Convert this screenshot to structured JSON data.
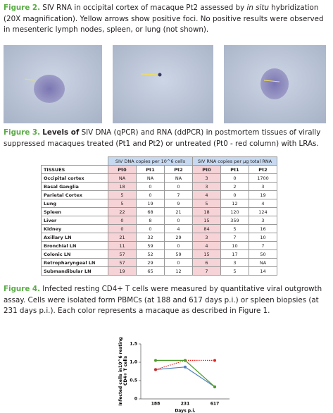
{
  "figure2": {
    "label": "Figure 2.",
    "text": [
      "SIV RNA in occipital cortex of macaque Pt2 assessed by ",
      "in situ",
      " hybridization (20X magnification). Yellow arrows show positive foci. No positive results were observed in mesenteric lymph nodes, spleen, or lung (not shown)."
    ]
  },
  "figure3": {
    "label": "Figure 3.",
    "bold": "Levels of",
    "text": " SIV DNA (qPCR) and RNA (ddPCR) in postmortem tissues of virally suppressed macaques treated (Pt1 and Pt2) or untreated (Pt0 - red column) with LRAs."
  },
  "table": {
    "group_headers": [
      "SIV DNA copies per 10^6 cells",
      "SIV RNA copies per μg total RNA"
    ],
    "columns": [
      "TISSUES",
      "Pt0",
      "Pt1",
      "Pt2",
      "Pt0",
      "Pt1",
      "Pt2"
    ],
    "rows": [
      [
        "Occipital cortex",
        "NA",
        "NA",
        "NA",
        3,
        0,
        1700
      ],
      [
        "Basal Ganglia",
        18,
        0,
        0,
        3,
        2,
        3
      ],
      [
        "Parietal Cortex",
        5,
        0,
        7,
        4,
        0,
        19
      ],
      [
        "Lung",
        5,
        19,
        9,
        5,
        12,
        4
      ],
      [
        "Spleen",
        22,
        68,
        21,
        18,
        120,
        124
      ],
      [
        "Liver",
        0,
        8,
        0,
        15,
        359,
        3
      ],
      [
        "Kidney",
        0,
        0,
        4,
        84,
        5,
        16
      ],
      [
        "Axillary LN",
        21,
        32,
        29,
        3,
        7,
        10
      ],
      [
        "Bronchial LN",
        11,
        59,
        0,
        4,
        10,
        7
      ],
      [
        "Colonic LN",
        57,
        52,
        59,
        15,
        17,
        50
      ],
      [
        "Retropharyngeal LN",
        57,
        29,
        0,
        6,
        3,
        "NA"
      ],
      [
        "Submandibular LN",
        19,
        65,
        12,
        7,
        5,
        14
      ]
    ]
  },
  "figure4": {
    "label": "Figure 4.",
    "text": " Infected resting CD4+ T cells were measured by quantitative viral outgrowth assay. Cells were isolated form PBMCs (at 188 and 617 days p.i.) or spleen biopsies (at 231 days p.i.). Each color represents a macaque as described in Figure 1."
  },
  "chart_data": {
    "type": "line",
    "x_label": "Days p.i.",
    "y_label": "Infected cells in10^6 resting CD4+ T cells",
    "categories": [
      "188",
      "231",
      "617"
    ],
    "ylim": [
      0,
      1.5
    ],
    "yticks": [
      0,
      0.5,
      {
        "value": 1,
        "label": "1.0"
      },
      1.5
    ],
    "series": [
      {
        "color": "#4f81bd",
        "values": [
          0.8,
          0.87,
          0.33
        ]
      },
      {
        "color": "#e0201b",
        "values": [
          0.8,
          1.05,
          1.05
        ],
        "dash": true
      },
      {
        "color": "#4a9a2a",
        "values": [
          1.05,
          1.05,
          0.33
        ]
      }
    ]
  }
}
